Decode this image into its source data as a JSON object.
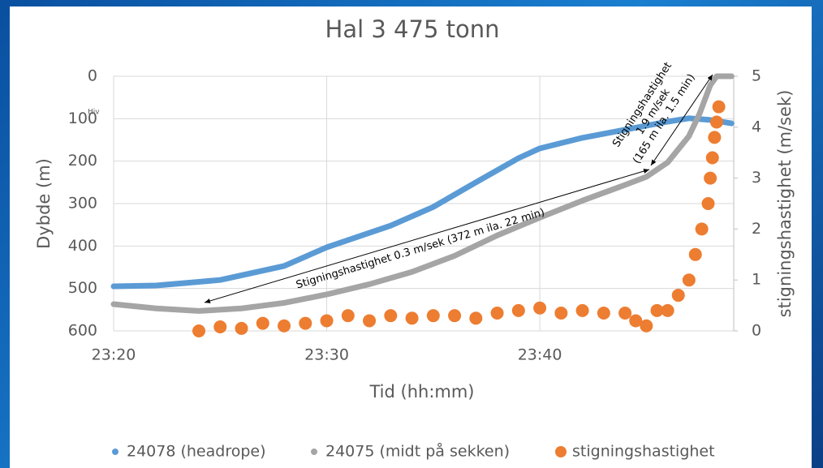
{
  "chart_data": {
    "type": "line",
    "title": "Hal 3 475 tonn",
    "x_label": "Tid (hh:mm)",
    "y_label": "Dybde (m)",
    "y2_label": "stigningshastighet (m/sek)",
    "xlim": [
      1400,
      1429.1
    ],
    "xticks": [
      {
        "value": 1400,
        "label": "23:20"
      },
      {
        "value": 1410,
        "label": "23:30"
      },
      {
        "value": 1420,
        "label": "23:40"
      }
    ],
    "ylim": [
      0,
      600
    ],
    "y_inverted": true,
    "yticks": [
      0,
      100,
      200,
      300,
      400,
      500,
      600
    ],
    "y2lim": [
      0,
      5
    ],
    "y2ticks": [
      0,
      1,
      2,
      3,
      4,
      5
    ],
    "grid": true,
    "legend": "bottom",
    "annotations": [
      "Hiv",
      "Stigningshastighet 0.3 m/sek (372 m ila. 22 min)"
    ],
    "annotation_block": [
      "Stigningshastighet",
      "1.9 m/sek",
      "(165 m ila. 1.5 min)"
    ],
    "series": [
      {
        "name": "24078 (headrope)",
        "color": "#5b9bd5",
        "style": "line",
        "x": [
          1400,
          1402,
          1405,
          1408,
          1410,
          1413,
          1415,
          1417,
          1419,
          1420,
          1422,
          1424,
          1426,
          1427,
          1428,
          1429
        ],
        "values": [
          495,
          493,
          480,
          447,
          403,
          352,
          308,
          250,
          193,
          170,
          145,
          126,
          107,
          99,
          103,
          111
        ]
      },
      {
        "name": "24075 (midt på sekken)",
        "color": "#a5a5a5",
        "style": "line",
        "x": [
          1400,
          1402,
          1404,
          1406,
          1408,
          1410,
          1412,
          1414,
          1416,
          1418,
          1420,
          1422,
          1424,
          1425,
          1426,
          1427,
          1427.5,
          1428,
          1428.3,
          1429
        ],
        "values": [
          537,
          547,
          553,
          547,
          534,
          514,
          490,
          461,
          423,
          375,
          333,
          293,
          256,
          237,
          203,
          141,
          88,
          21,
          0,
          0
        ]
      },
      {
        "name": "stigningshastighet",
        "color": "#ed7d31",
        "style": "dots",
        "axis": "y2",
        "x": [
          1404,
          1405,
          1406,
          1407,
          1408,
          1409,
          1410,
          1411,
          1412,
          1413,
          1414,
          1415,
          1416,
          1417,
          1418,
          1419,
          1420,
          1421,
          1422,
          1423,
          1424,
          1424.5,
          1425,
          1425.5,
          1426,
          1426.5,
          1427,
          1427.3,
          1427.6,
          1427.9,
          1428,
          1428.1,
          1428.2,
          1428.3,
          1428.4
        ],
        "values": [
          0.0,
          0.08,
          0.05,
          0.15,
          0.1,
          0.15,
          0.2,
          0.3,
          0.2,
          0.3,
          0.25,
          0.3,
          0.3,
          0.25,
          0.35,
          0.4,
          0.45,
          0.35,
          0.4,
          0.35,
          0.35,
          0.2,
          0.1,
          0.4,
          0.4,
          0.7,
          1.0,
          1.5,
          2.0,
          2.5,
          3.0,
          3.4,
          3.8,
          4.1,
          4.4
        ]
      }
    ]
  }
}
